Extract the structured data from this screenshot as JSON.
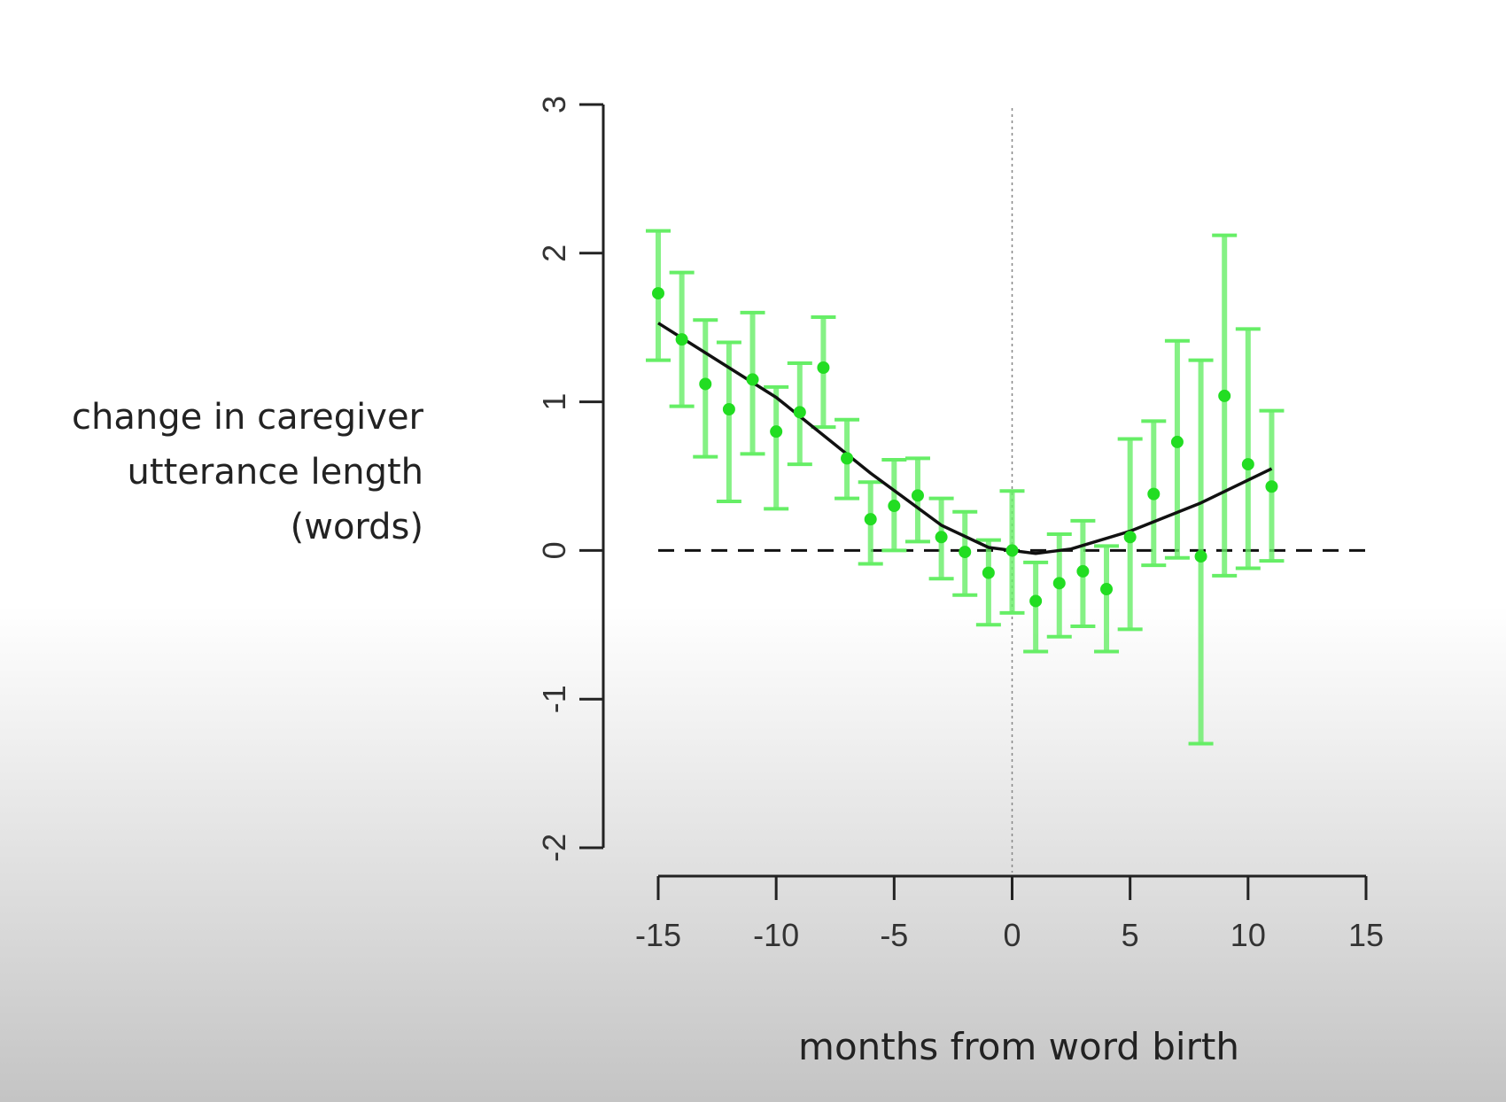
{
  "chart_data": {
    "type": "scatter",
    "title": "",
    "ylabel_lines": [
      "change in caregiver",
      "utterance length",
      "(words)"
    ],
    "xlabel": "months from word birth",
    "xlim": [
      -15,
      15
    ],
    "ylim": [
      -2,
      3
    ],
    "xticks": [
      -15,
      -10,
      -5,
      0,
      5,
      10,
      15
    ],
    "yticks": [
      -2,
      -1,
      0,
      1,
      2,
      3
    ],
    "xtick_labels": [
      "-15",
      "-10",
      "-5",
      "0",
      "5",
      "10",
      "15"
    ],
    "ytick_labels": [
      "-2",
      "-1",
      "0",
      "1",
      "2",
      "3"
    ],
    "grid": false,
    "reference_lines": {
      "horizontal_dashed_y": 0,
      "vertical_dotted_x": 0
    },
    "colors": {
      "points": "#22dd22",
      "error_bars": "#66ee66",
      "fit_line": "#111111",
      "axes": "#222222"
    },
    "points": [
      {
        "x": -15,
        "y": 1.73,
        "lo": 1.28,
        "hi": 2.15
      },
      {
        "x": -14,
        "y": 1.42,
        "lo": 0.97,
        "hi": 1.87
      },
      {
        "x": -13,
        "y": 1.12,
        "lo": 0.63,
        "hi": 1.55
      },
      {
        "x": -12,
        "y": 0.95,
        "lo": 0.33,
        "hi": 1.4
      },
      {
        "x": -11,
        "y": 1.15,
        "lo": 0.65,
        "hi": 1.6
      },
      {
        "x": -10,
        "y": 0.8,
        "lo": 0.28,
        "hi": 1.1
      },
      {
        "x": -9,
        "y": 0.93,
        "lo": 0.58,
        "hi": 1.26
      },
      {
        "x": -8,
        "y": 1.23,
        "lo": 0.83,
        "hi": 1.57
      },
      {
        "x": -7,
        "y": 0.62,
        "lo": 0.35,
        "hi": 0.88
      },
      {
        "x": -6,
        "y": 0.21,
        "lo": -0.09,
        "hi": 0.46
      },
      {
        "x": -5,
        "y": 0.3,
        "lo": 0.0,
        "hi": 0.61
      },
      {
        "x": -4,
        "y": 0.37,
        "lo": 0.06,
        "hi": 0.62
      },
      {
        "x": -3,
        "y": 0.09,
        "lo": -0.19,
        "hi": 0.35
      },
      {
        "x": -2,
        "y": -0.01,
        "lo": -0.3,
        "hi": 0.26
      },
      {
        "x": -1,
        "y": -0.15,
        "lo": -0.5,
        "hi": 0.07
      },
      {
        "x": 0,
        "y": 0.0,
        "lo": -0.42,
        "hi": 0.4
      },
      {
        "x": 1,
        "y": -0.34,
        "lo": -0.68,
        "hi": -0.08
      },
      {
        "x": 2,
        "y": -0.22,
        "lo": -0.58,
        "hi": 0.11
      },
      {
        "x": 3,
        "y": -0.14,
        "lo": -0.51,
        "hi": 0.2
      },
      {
        "x": 4,
        "y": -0.26,
        "lo": -0.68,
        "hi": 0.03
      },
      {
        "x": 5,
        "y": 0.09,
        "lo": -0.53,
        "hi": 0.75
      },
      {
        "x": 6,
        "y": 0.38,
        "lo": -0.1,
        "hi": 0.87
      },
      {
        "x": 7,
        "y": 0.73,
        "lo": -0.05,
        "hi": 1.41
      },
      {
        "x": 8,
        "y": -0.04,
        "lo": -1.3,
        "hi": 1.28
      },
      {
        "x": 9,
        "y": 1.04,
        "lo": -0.17,
        "hi": 2.12
      },
      {
        "x": 10,
        "y": 0.58,
        "lo": -0.12,
        "hi": 1.49
      },
      {
        "x": 11,
        "y": 0.43,
        "lo": -0.07,
        "hi": 0.94
      }
    ],
    "fit_line": [
      {
        "x": -15,
        "y": 1.53
      },
      {
        "x": -10,
        "y": 1.03
      },
      {
        "x": -6,
        "y": 0.52
      },
      {
        "x": -3,
        "y": 0.17
      },
      {
        "x": -1,
        "y": 0.02
      },
      {
        "x": 1,
        "y": -0.02
      },
      {
        "x": 2.5,
        "y": 0.01
      },
      {
        "x": 5,
        "y": 0.13
      },
      {
        "x": 8,
        "y": 0.32
      },
      {
        "x": 11,
        "y": 0.55
      }
    ]
  }
}
